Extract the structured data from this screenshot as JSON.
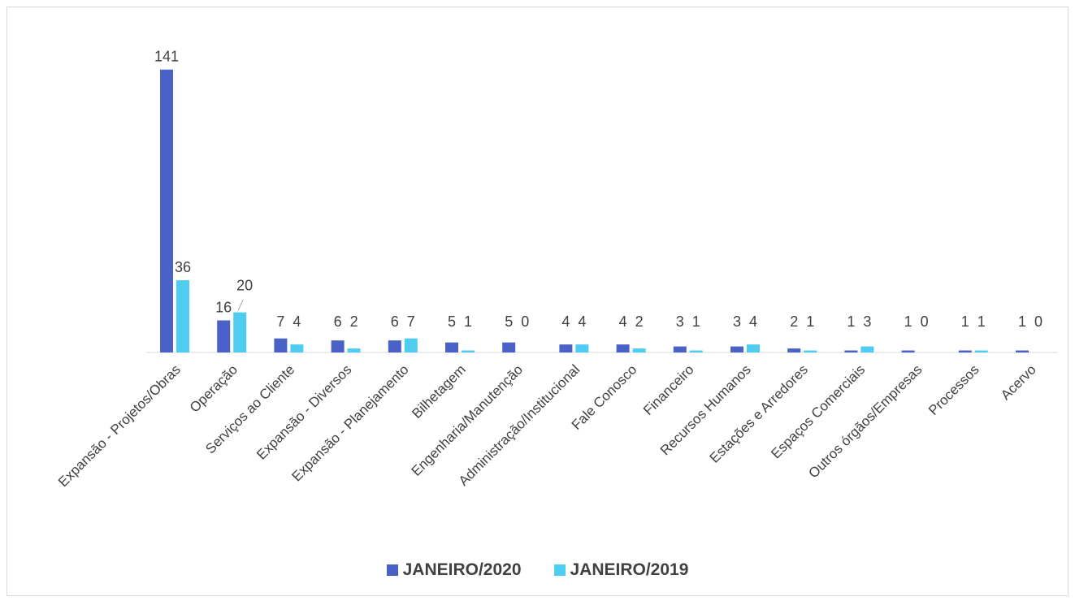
{
  "chart_data": {
    "type": "bar",
    "title": "",
    "xlabel": "",
    "ylabel": "",
    "ylim": [
      0,
      145
    ],
    "grid": false,
    "legend_position": "bottom",
    "categories": [
      "Expansão - Projetos/Obras",
      "Operação",
      "Serviços ao Cliente",
      "Expansão - Diversos",
      "Expansão - Planejamento",
      "Bilhetagem",
      "Engenharia/Manutenção",
      "Administração/Institucional",
      "Fale Conosco",
      "Financeiro",
      "Recursos Humanos",
      "Estações e Arredores",
      "Espaços Comerciais",
      "Outros órgãos/Empresas",
      "Processos",
      "Acervo"
    ],
    "series": [
      {
        "name": "JANEIRO/2020",
        "color": "#4a62c8",
        "values": [
          141,
          16,
          7,
          6,
          6,
          5,
          5,
          4,
          4,
          3,
          3,
          2,
          1,
          1,
          1,
          1
        ]
      },
      {
        "name": "JANEIRO/2019",
        "color": "#4fcdf0",
        "values": [
          36,
          20,
          4,
          2,
          7,
          1,
          0,
          4,
          2,
          1,
          4,
          1,
          3,
          0,
          1,
          0
        ]
      }
    ]
  }
}
